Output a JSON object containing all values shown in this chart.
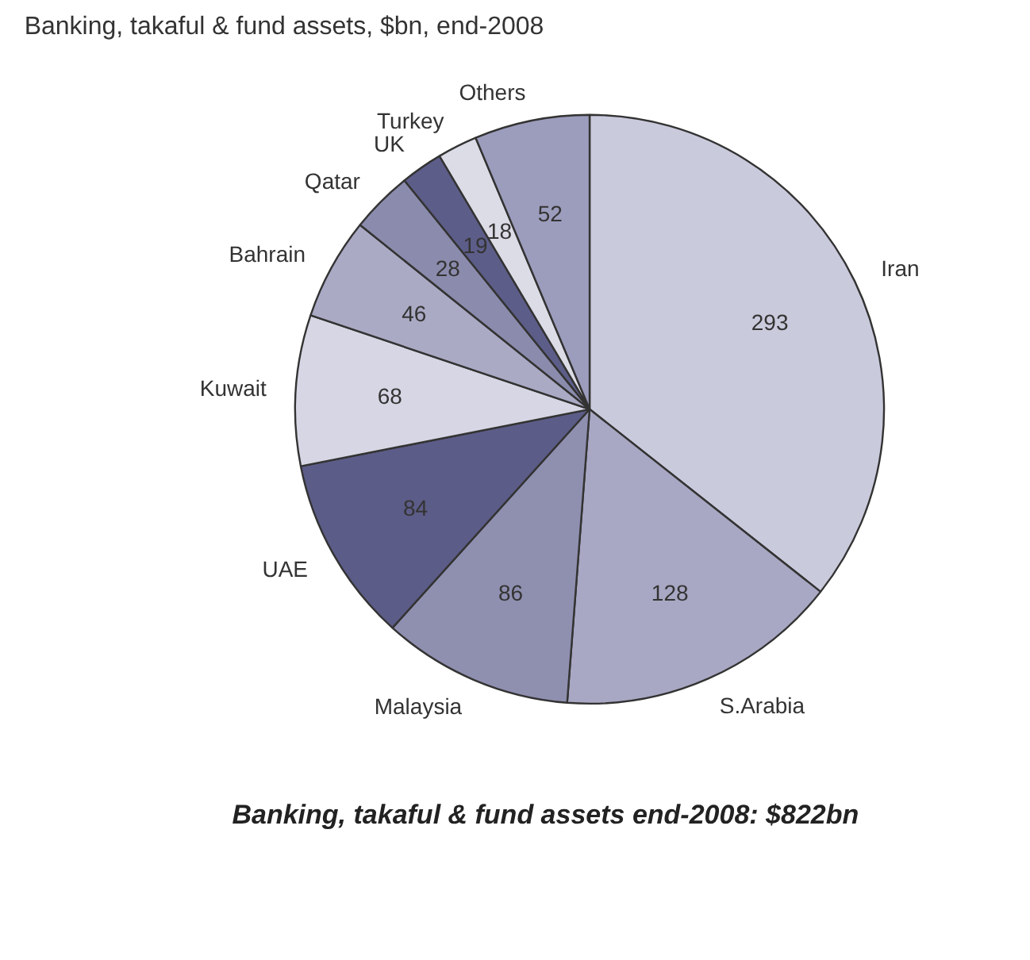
{
  "chart_data": {
    "type": "pie",
    "title": "Banking, takaful & fund assets, $bn, end-2008",
    "categories": [
      "Iran",
      "S.Arabia",
      "Malaysia",
      "UAE",
      "Kuwait",
      "Bahrain",
      "Qatar",
      "UK",
      "Turkey",
      "Others"
    ],
    "values": [
      293,
      128,
      86,
      84,
      68,
      46,
      28,
      19,
      18,
      52
    ],
    "colors": [
      "#cacadd",
      "#a8a8c4",
      "#8f8fb0",
      "#5c5c88",
      "#d6d6e4",
      "#aaaac5",
      "#8b8bad",
      "#5d5d89",
      "#dcdce7",
      "#9c9cbd"
    ],
    "data_labels": true,
    "annotations": [
      "Banking, takaful & fund assets end-2008: $822bn"
    ]
  }
}
